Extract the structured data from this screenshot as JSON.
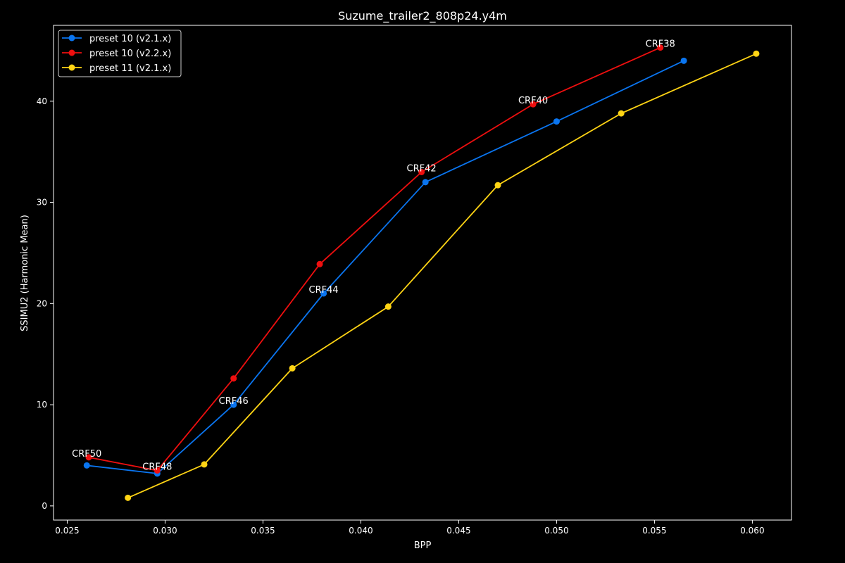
{
  "chart_data": {
    "type": "line",
    "title": "Suzume_trailer2_808p24.y4m",
    "xlabel": "BPP",
    "ylabel": "SSIMU2 (Harmonic Mean)",
    "xlim": [
      0.0243,
      0.062
    ],
    "ylim": [
      -1.4,
      47.5
    ],
    "xticks": [
      0.025,
      0.03,
      0.035,
      0.04,
      0.045,
      0.05,
      0.055,
      0.06
    ],
    "xtick_labels": [
      "0.025",
      "0.030",
      "0.035",
      "0.040",
      "0.045",
      "0.050",
      "0.055",
      "0.060"
    ],
    "yticks": [
      0,
      10,
      20,
      30,
      40
    ],
    "ytick_labels": [
      "0",
      "10",
      "20",
      "30",
      "40"
    ],
    "grid": false,
    "legend_position": "top-left",
    "series": [
      {
        "name": "preset 10 (v2.1.x)",
        "color": "#0a75f0",
        "x": [
          0.026,
          0.0296,
          0.0335,
          0.0381,
          0.0433,
          0.05,
          0.0565
        ],
        "y": [
          4.0,
          3.2,
          10.0,
          21.0,
          32.0,
          38.0,
          44.0
        ]
      },
      {
        "name": "preset 10 (v2.2.x)",
        "color": "#ee0f0f",
        "x": [
          0.0261,
          0.0296,
          0.0335,
          0.0379,
          0.0431,
          0.0488,
          0.0553
        ],
        "y": [
          4.8,
          3.5,
          12.6,
          23.9,
          33.0,
          39.7,
          45.3
        ]
      },
      {
        "name": "preset 11 (v2.1.x)",
        "color": "#ffd414",
        "x": [
          0.0281,
          0.032,
          0.0365,
          0.0414,
          0.047,
          0.0533,
          0.0602
        ],
        "y": [
          0.8,
          4.1,
          13.6,
          19.7,
          31.7,
          38.8,
          44.7
        ]
      }
    ],
    "annotations": [
      {
        "text": "CRF50",
        "x": 0.026,
        "y": 4.8
      },
      {
        "text": "CRF48",
        "x": 0.0296,
        "y": 3.5
      },
      {
        "text": "CRF46",
        "x": 0.0335,
        "y": 10.0
      },
      {
        "text": "CRF44",
        "x": 0.0381,
        "y": 21.0
      },
      {
        "text": "CRF42",
        "x": 0.0431,
        "y": 33.0
      },
      {
        "text": "CRF40",
        "x": 0.0488,
        "y": 39.7
      },
      {
        "text": "CRF38",
        "x": 0.0553,
        "y": 45.3
      }
    ]
  }
}
